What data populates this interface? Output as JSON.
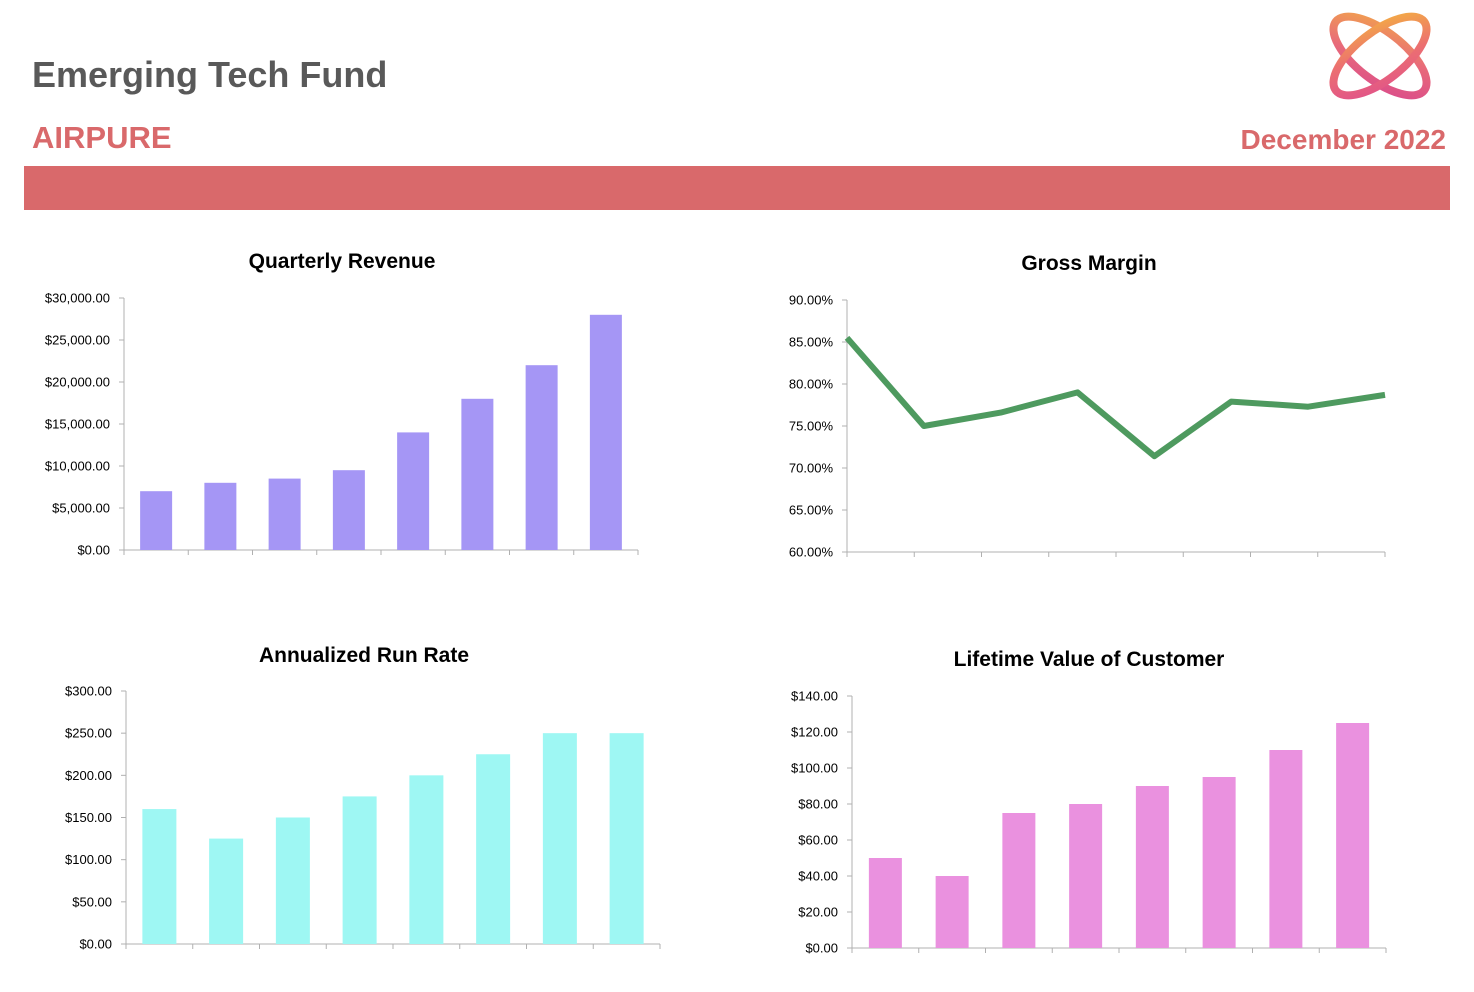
{
  "header": {
    "fund_title": "Emerging Tech Fund",
    "company": "AIRPURE",
    "period": "December 2022",
    "band_color": "#d9696b",
    "logo_icon": "orbit-logo-icon"
  },
  "chart_data": [
    {
      "type": "bar",
      "title": "Quarterly Revenue",
      "xlabel": "",
      "ylabel": "",
      "color": "#a596f5",
      "categories": [
        "",
        "",
        "",
        "",
        "",
        "",
        "",
        ""
      ],
      "values": [
        7000,
        8000,
        8500,
        9500,
        14000,
        18000,
        22000,
        28000
      ],
      "ylim": [
        0,
        30000
      ],
      "yticks": [
        0,
        5000,
        10000,
        15000,
        20000,
        25000,
        30000
      ],
      "ytick_labels": [
        "$0.00",
        "$5,000.00",
        "$10,000.00",
        "$15,000.00",
        "$20,000.00",
        "$25,000.00",
        "$30,000.00"
      ],
      "grid": false,
      "legend": "none"
    },
    {
      "type": "line",
      "title": "Gross Margin",
      "xlabel": "",
      "ylabel": "",
      "color": "#4e9a5f",
      "categories": [
        "",
        "",
        "",
        "",
        "",
        "",
        "",
        ""
      ],
      "values": [
        85.5,
        75.0,
        76.6,
        79.0,
        71.4,
        77.9,
        77.3,
        78.7
      ],
      "ylim": [
        60,
        90
      ],
      "yticks": [
        60,
        65,
        70,
        75,
        80,
        85,
        90
      ],
      "ytick_labels": [
        "60.00%",
        "65.00%",
        "70.00%",
        "75.00%",
        "80.00%",
        "85.00%",
        "90.00%"
      ],
      "grid": false,
      "legend": "none"
    },
    {
      "type": "bar",
      "title": "Annualized Run Rate",
      "xlabel": "",
      "ylabel": "",
      "color": "#9ef7f3",
      "categories": [
        "",
        "",
        "",
        "",
        "",
        "",
        "",
        ""
      ],
      "values": [
        160,
        125,
        150,
        175,
        200,
        225,
        250,
        250
      ],
      "ylim": [
        0,
        300
      ],
      "yticks": [
        0,
        50,
        100,
        150,
        200,
        250,
        300
      ],
      "ytick_labels": [
        "$0.00",
        "$50.00",
        "$100.00",
        "$150.00",
        "$200.00",
        "$250.00",
        "$300.00"
      ],
      "grid": false,
      "legend": "none"
    },
    {
      "type": "bar",
      "title": "Lifetime Value of Customer",
      "xlabel": "",
      "ylabel": "",
      "color": "#ea91df",
      "categories": [
        "",
        "",
        "",
        "",
        "",
        "",
        "",
        ""
      ],
      "values": [
        50,
        40,
        75,
        80,
        90,
        95,
        110,
        125
      ],
      "ylim": [
        0,
        140
      ],
      "yticks": [
        0,
        20,
        40,
        60,
        80,
        100,
        120,
        140
      ],
      "ytick_labels": [
        "$0.00",
        "$20.00",
        "$40.00",
        "$60.00",
        "$80.00",
        "$100.00",
        "$120.00",
        "$140.00"
      ],
      "grid": false,
      "legend": "none"
    }
  ]
}
